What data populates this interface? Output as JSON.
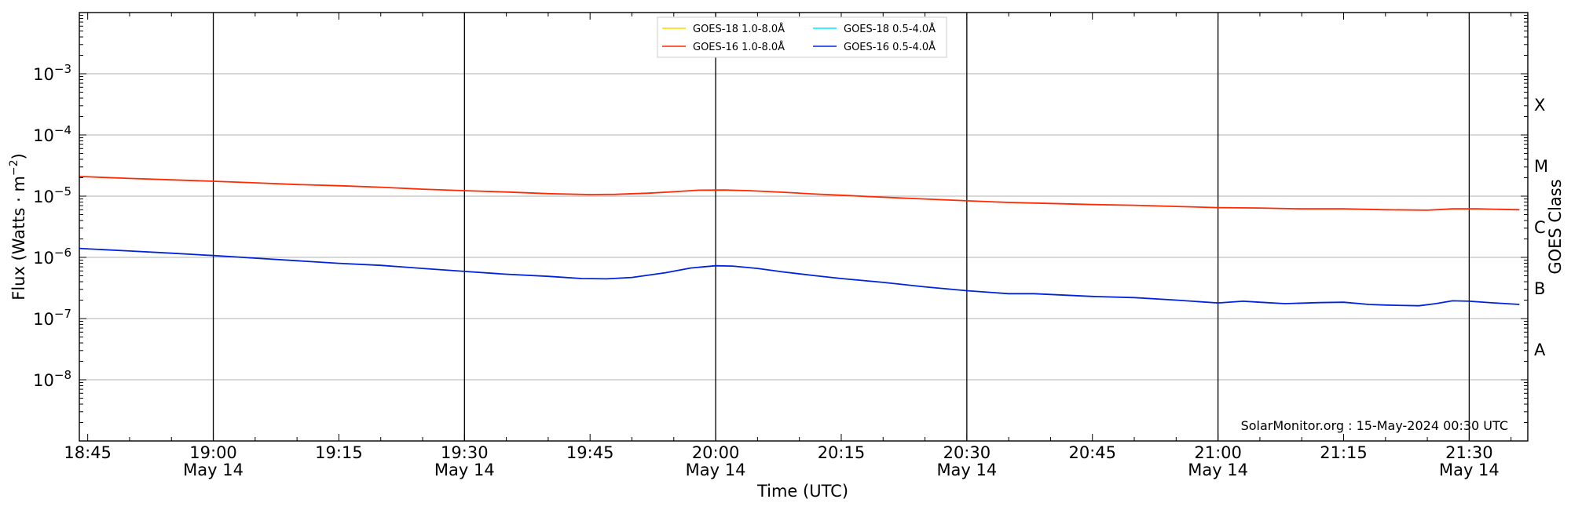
{
  "chart_data": {
    "type": "line",
    "x_axis": {
      "label": "Time (UTC)",
      "scale": "time",
      "range": [
        "18:44",
        "21:37"
      ],
      "ticks": [
        {
          "time": "18:45",
          "line1": "18:45",
          "line2": ""
        },
        {
          "time": "19:00",
          "line1": "19:00",
          "line2": "May 14"
        },
        {
          "time": "19:15",
          "line1": "19:15",
          "line2": ""
        },
        {
          "time": "19:30",
          "line1": "19:30",
          "line2": "May 14"
        },
        {
          "time": "19:45",
          "line1": "19:45",
          "line2": ""
        },
        {
          "time": "20:00",
          "line1": "20:00",
          "line2": "May 14"
        },
        {
          "time": "20:15",
          "line1": "20:15",
          "line2": ""
        },
        {
          "time": "20:30",
          "line1": "20:30",
          "line2": "May 14"
        },
        {
          "time": "20:45",
          "line1": "20:45",
          "line2": ""
        },
        {
          "time": "21:00",
          "line1": "21:00",
          "line2": "May 14"
        },
        {
          "time": "21:15",
          "line1": "21:15",
          "line2": ""
        },
        {
          "time": "21:30",
          "line1": "21:30",
          "line2": "May 14"
        }
      ],
      "vertical_lines": [
        "19:00",
        "19:30",
        "20:00",
        "20:30",
        "21:00",
        "21:30"
      ]
    },
    "y_axis": {
      "label": "Flux (Watts · m",
      "label_exponent": "−2",
      "label_suffix": ")",
      "scale": "log",
      "range": [
        1e-09,
        0.01
      ],
      "ticks": [
        {
          "value": 1e-08,
          "base": "10",
          "exp": "−8"
        },
        {
          "value": 1e-07,
          "base": "10",
          "exp": "−7"
        },
        {
          "value": 1e-06,
          "base": "10",
          "exp": "−6"
        },
        {
          "value": 1e-05,
          "base": "10",
          "exp": "−5"
        },
        {
          "value": 0.0001,
          "base": "10",
          "exp": "−4"
        },
        {
          "value": 0.001,
          "base": "10",
          "exp": "−3"
        }
      ],
      "gridlines": [
        1e-08,
        1e-07,
        1e-06,
        1e-05,
        0.0001,
        0.001
      ]
    },
    "right_axis": {
      "label": "GOES Class",
      "classes": [
        {
          "label": "A",
          "value": 3.16e-08
        },
        {
          "label": "B",
          "value": 3.16e-07
        },
        {
          "label": "C",
          "value": 3.16e-06
        },
        {
          "label": "M",
          "value": 3.16e-05
        },
        {
          "label": "X",
          "value": 0.000316
        }
      ]
    },
    "legend": {
      "placement": "top-center",
      "entries": [
        {
          "name": "GOES-18 1.0-8.0Å",
          "color": "#ffd700"
        },
        {
          "name": "GOES-18 0.5-4.0Å",
          "color": "#00e5ff"
        },
        {
          "name": "GOES-16 1.0-8.0Å",
          "color": "#ff2a00"
        },
        {
          "name": "GOES-16 0.5-4.0Å",
          "color": "#0022dd"
        }
      ]
    },
    "series": [
      {
        "name": "GOES-16 1.0-8.0Å",
        "color": "#ff2a00",
        "points": [
          [
            "18:44",
            2.1e-05
          ],
          [
            "18:50",
            1.95e-05
          ],
          [
            "18:55",
            1.85e-05
          ],
          [
            "19:00",
            1.75e-05
          ],
          [
            "19:05",
            1.65e-05
          ],
          [
            "19:10",
            1.55e-05
          ],
          [
            "19:15",
            1.48e-05
          ],
          [
            "19:20",
            1.4e-05
          ],
          [
            "19:25",
            1.3e-05
          ],
          [
            "19:30",
            1.23e-05
          ],
          [
            "19:35",
            1.17e-05
          ],
          [
            "19:40",
            1.1e-05
          ],
          [
            "19:45",
            1.06e-05
          ],
          [
            "19:48",
            1.07e-05
          ],
          [
            "19:52",
            1.12e-05
          ],
          [
            "19:55",
            1.18e-05
          ],
          [
            "19:58",
            1.25e-05
          ],
          [
            "20:01",
            1.26e-05
          ],
          [
            "20:04",
            1.23e-05
          ],
          [
            "20:08",
            1.16e-05
          ],
          [
            "20:12",
            1.08e-05
          ],
          [
            "20:16",
            1.02e-05
          ],
          [
            "20:20",
            9.6e-06
          ],
          [
            "20:25",
            9e-06
          ],
          [
            "20:30",
            8.4e-06
          ],
          [
            "20:35",
            7.9e-06
          ],
          [
            "20:40",
            7.6e-06
          ],
          [
            "20:45",
            7.3e-06
          ],
          [
            "20:50",
            7.1e-06
          ],
          [
            "20:55",
            6.8e-06
          ],
          [
            "21:00",
            6.5e-06
          ],
          [
            "21:05",
            6.4e-06
          ],
          [
            "21:10",
            6.2e-06
          ],
          [
            "21:15",
            6.2e-06
          ],
          [
            "21:20",
            6e-06
          ],
          [
            "21:25",
            5.9e-06
          ],
          [
            "21:28",
            6.2e-06
          ],
          [
            "21:31",
            6.2e-06
          ],
          [
            "21:36",
            6e-06
          ]
        ]
      },
      {
        "name": "GOES-16 0.5-4.0Å",
        "color": "#0022dd",
        "points": [
          [
            "18:44",
            1.4e-06
          ],
          [
            "18:50",
            1.27e-06
          ],
          [
            "18:55",
            1.17e-06
          ],
          [
            "19:00",
            1.07e-06
          ],
          [
            "19:05",
            9.7e-07
          ],
          [
            "19:10",
            8.8e-07
          ],
          [
            "19:15",
            8e-07
          ],
          [
            "19:20",
            7.4e-07
          ],
          [
            "19:25",
            6.6e-07
          ],
          [
            "19:30",
            5.9e-07
          ],
          [
            "19:35",
            5.3e-07
          ],
          [
            "19:40",
            4.9e-07
          ],
          [
            "19:44",
            4.5e-07
          ],
          [
            "19:47",
            4.45e-07
          ],
          [
            "19:50",
            4.7e-07
          ],
          [
            "19:54",
            5.6e-07
          ],
          [
            "19:57",
            6.7e-07
          ],
          [
            "20:00",
            7.3e-07
          ],
          [
            "20:02",
            7.2e-07
          ],
          [
            "20:05",
            6.6e-07
          ],
          [
            "20:08",
            5.8e-07
          ],
          [
            "20:12",
            5e-07
          ],
          [
            "20:15",
            4.5e-07
          ],
          [
            "20:20",
            3.9e-07
          ],
          [
            "20:25",
            3.3e-07
          ],
          [
            "20:30",
            2.85e-07
          ],
          [
            "20:35",
            2.55e-07
          ],
          [
            "20:38",
            2.55e-07
          ],
          [
            "20:42",
            2.4e-07
          ],
          [
            "20:45",
            2.3e-07
          ],
          [
            "20:50",
            2.2e-07
          ],
          [
            "20:55",
            2e-07
          ],
          [
            "21:00",
            1.8e-07
          ],
          [
            "21:03",
            1.92e-07
          ],
          [
            "21:05",
            1.85e-07
          ],
          [
            "21:08",
            1.75e-07
          ],
          [
            "21:12",
            1.82e-07
          ],
          [
            "21:15",
            1.85e-07
          ],
          [
            "21:18",
            1.7e-07
          ],
          [
            "21:20",
            1.66e-07
          ],
          [
            "21:24",
            1.62e-07
          ],
          [
            "21:26",
            1.75e-07
          ],
          [
            "21:28",
            1.95e-07
          ],
          [
            "21:30",
            1.92e-07
          ],
          [
            "21:33",
            1.8e-07
          ],
          [
            "21:36",
            1.7e-07
          ]
        ]
      }
    ],
    "annotation": "SolarMonitor.org : 15-May-2024 00:30 UTC",
    "grid": true
  }
}
